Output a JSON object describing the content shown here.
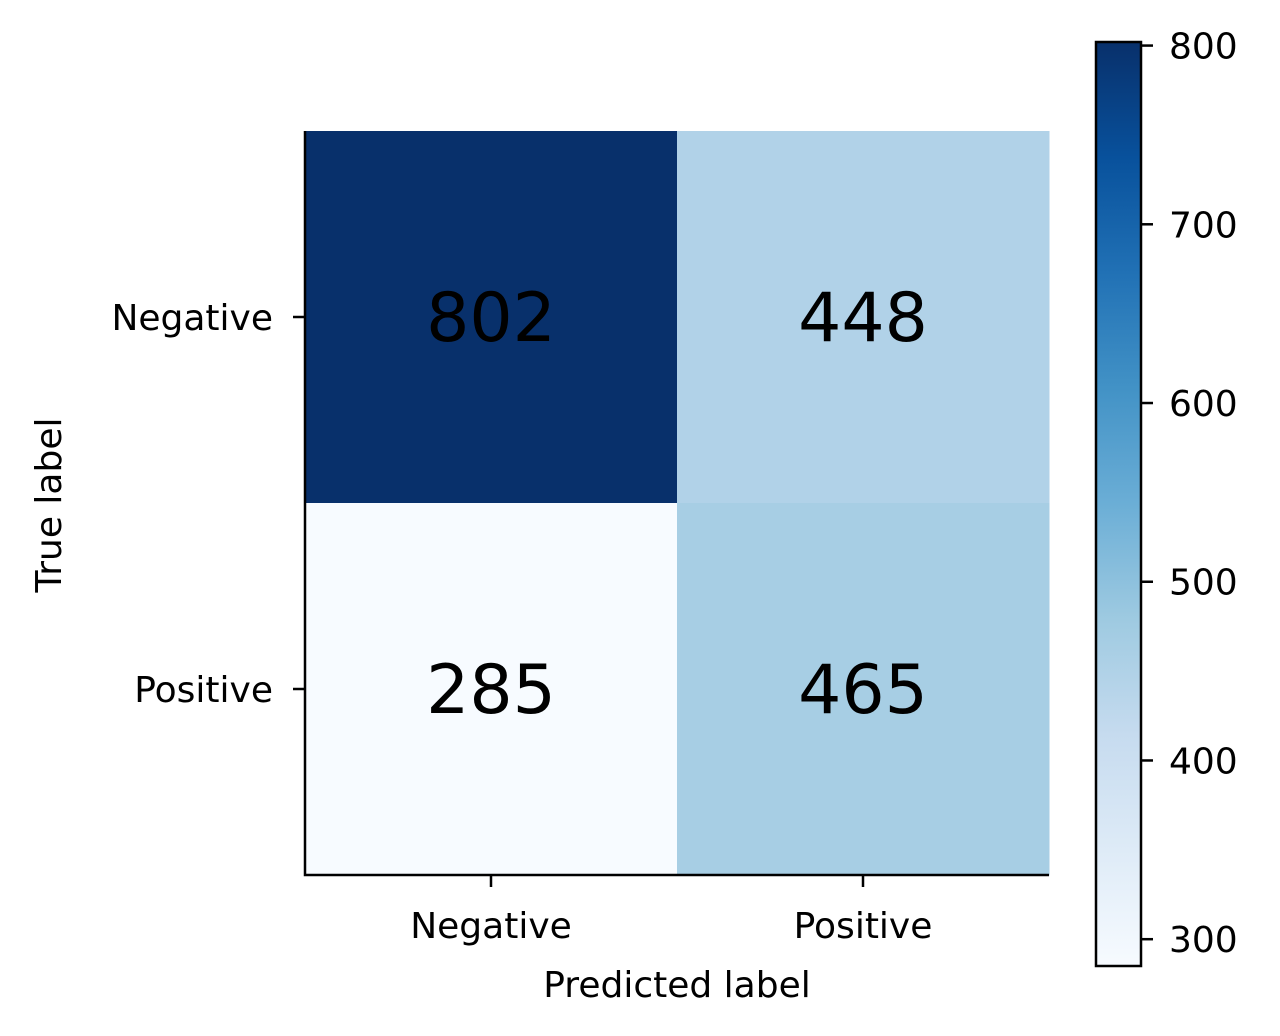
{
  "chart_data": {
    "type": "heatmap",
    "title": "",
    "xlabel": "Predicted label",
    "ylabel": "True label",
    "x_categories": [
      "Negative",
      "Positive"
    ],
    "y_categories": [
      "Negative",
      "Positive"
    ],
    "values": [
      [
        802,
        448
      ],
      [
        285,
        465
      ]
    ],
    "colormap": "Blues",
    "colorbar": {
      "range": [
        285,
        802
      ],
      "ticks": [
        300,
        400,
        500,
        600,
        700,
        800
      ]
    },
    "grid": false,
    "colors": {
      "low": "#f7fbff",
      "high": "#08306b",
      "text": "#000000"
    }
  }
}
